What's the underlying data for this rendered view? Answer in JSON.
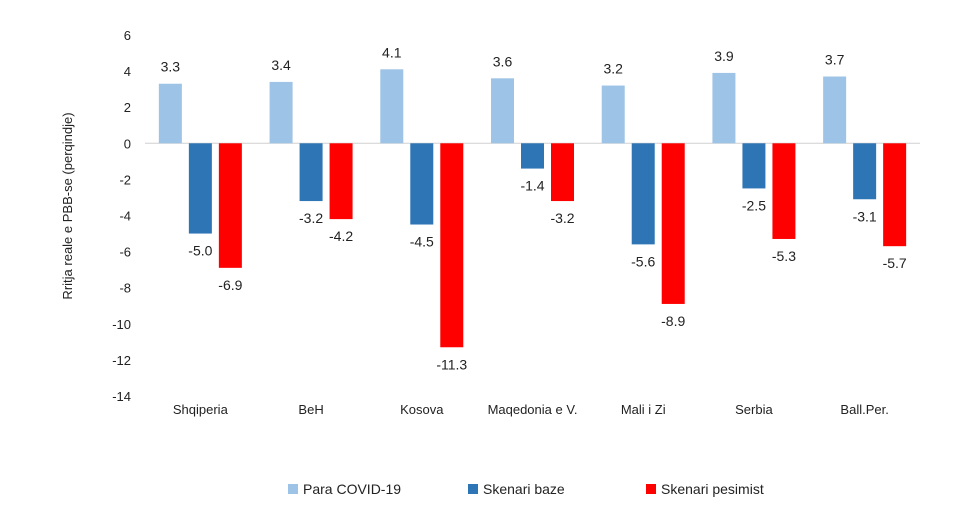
{
  "chart_data": {
    "type": "bar",
    "title": "",
    "xlabel": "",
    "ylabel": "Rritja reale e PBB-se (perqindje)",
    "ylim": [
      -14,
      6
    ],
    "yticks": [
      6,
      4,
      2,
      0,
      -2,
      -4,
      -6,
      -8,
      -10,
      -12,
      -14
    ],
    "grid": false,
    "legend_position": "bottom",
    "categories": [
      "Shqiperia",
      "BeH",
      "Kosova",
      "Maqedonia e V.",
      "Mali i Zi",
      "Serbia",
      "Ball.Per."
    ],
    "series": [
      {
        "name": "Para COVID-19",
        "color": "#9DC3E6",
        "values": [
          3.3,
          3.4,
          4.1,
          3.6,
          3.2,
          3.9,
          3.7
        ],
        "labels": [
          "3.3",
          "3.4",
          "4.1",
          "3.6",
          "3.2",
          "3.9",
          "3.7"
        ]
      },
      {
        "name": "Skenari baze",
        "color": "#2E75B6",
        "values": [
          -5.0,
          -3.2,
          -4.5,
          -1.4,
          -5.6,
          -2.5,
          -3.1
        ],
        "labels": [
          "-5.0",
          "-3.2",
          "-4.5",
          "-1.4",
          "-5.6",
          "-2.5",
          "-3.1"
        ]
      },
      {
        "name": "Skenari pesimist",
        "color": "#FF0000",
        "values": [
          -6.9,
          -4.2,
          -11.3,
          -3.2,
          -8.9,
          -5.3,
          -5.7
        ],
        "labels": [
          "-6.9",
          "-4.2",
          "-11.3",
          "-3.2",
          "-8.9",
          "-5.3",
          "-5.7"
        ]
      }
    ]
  }
}
